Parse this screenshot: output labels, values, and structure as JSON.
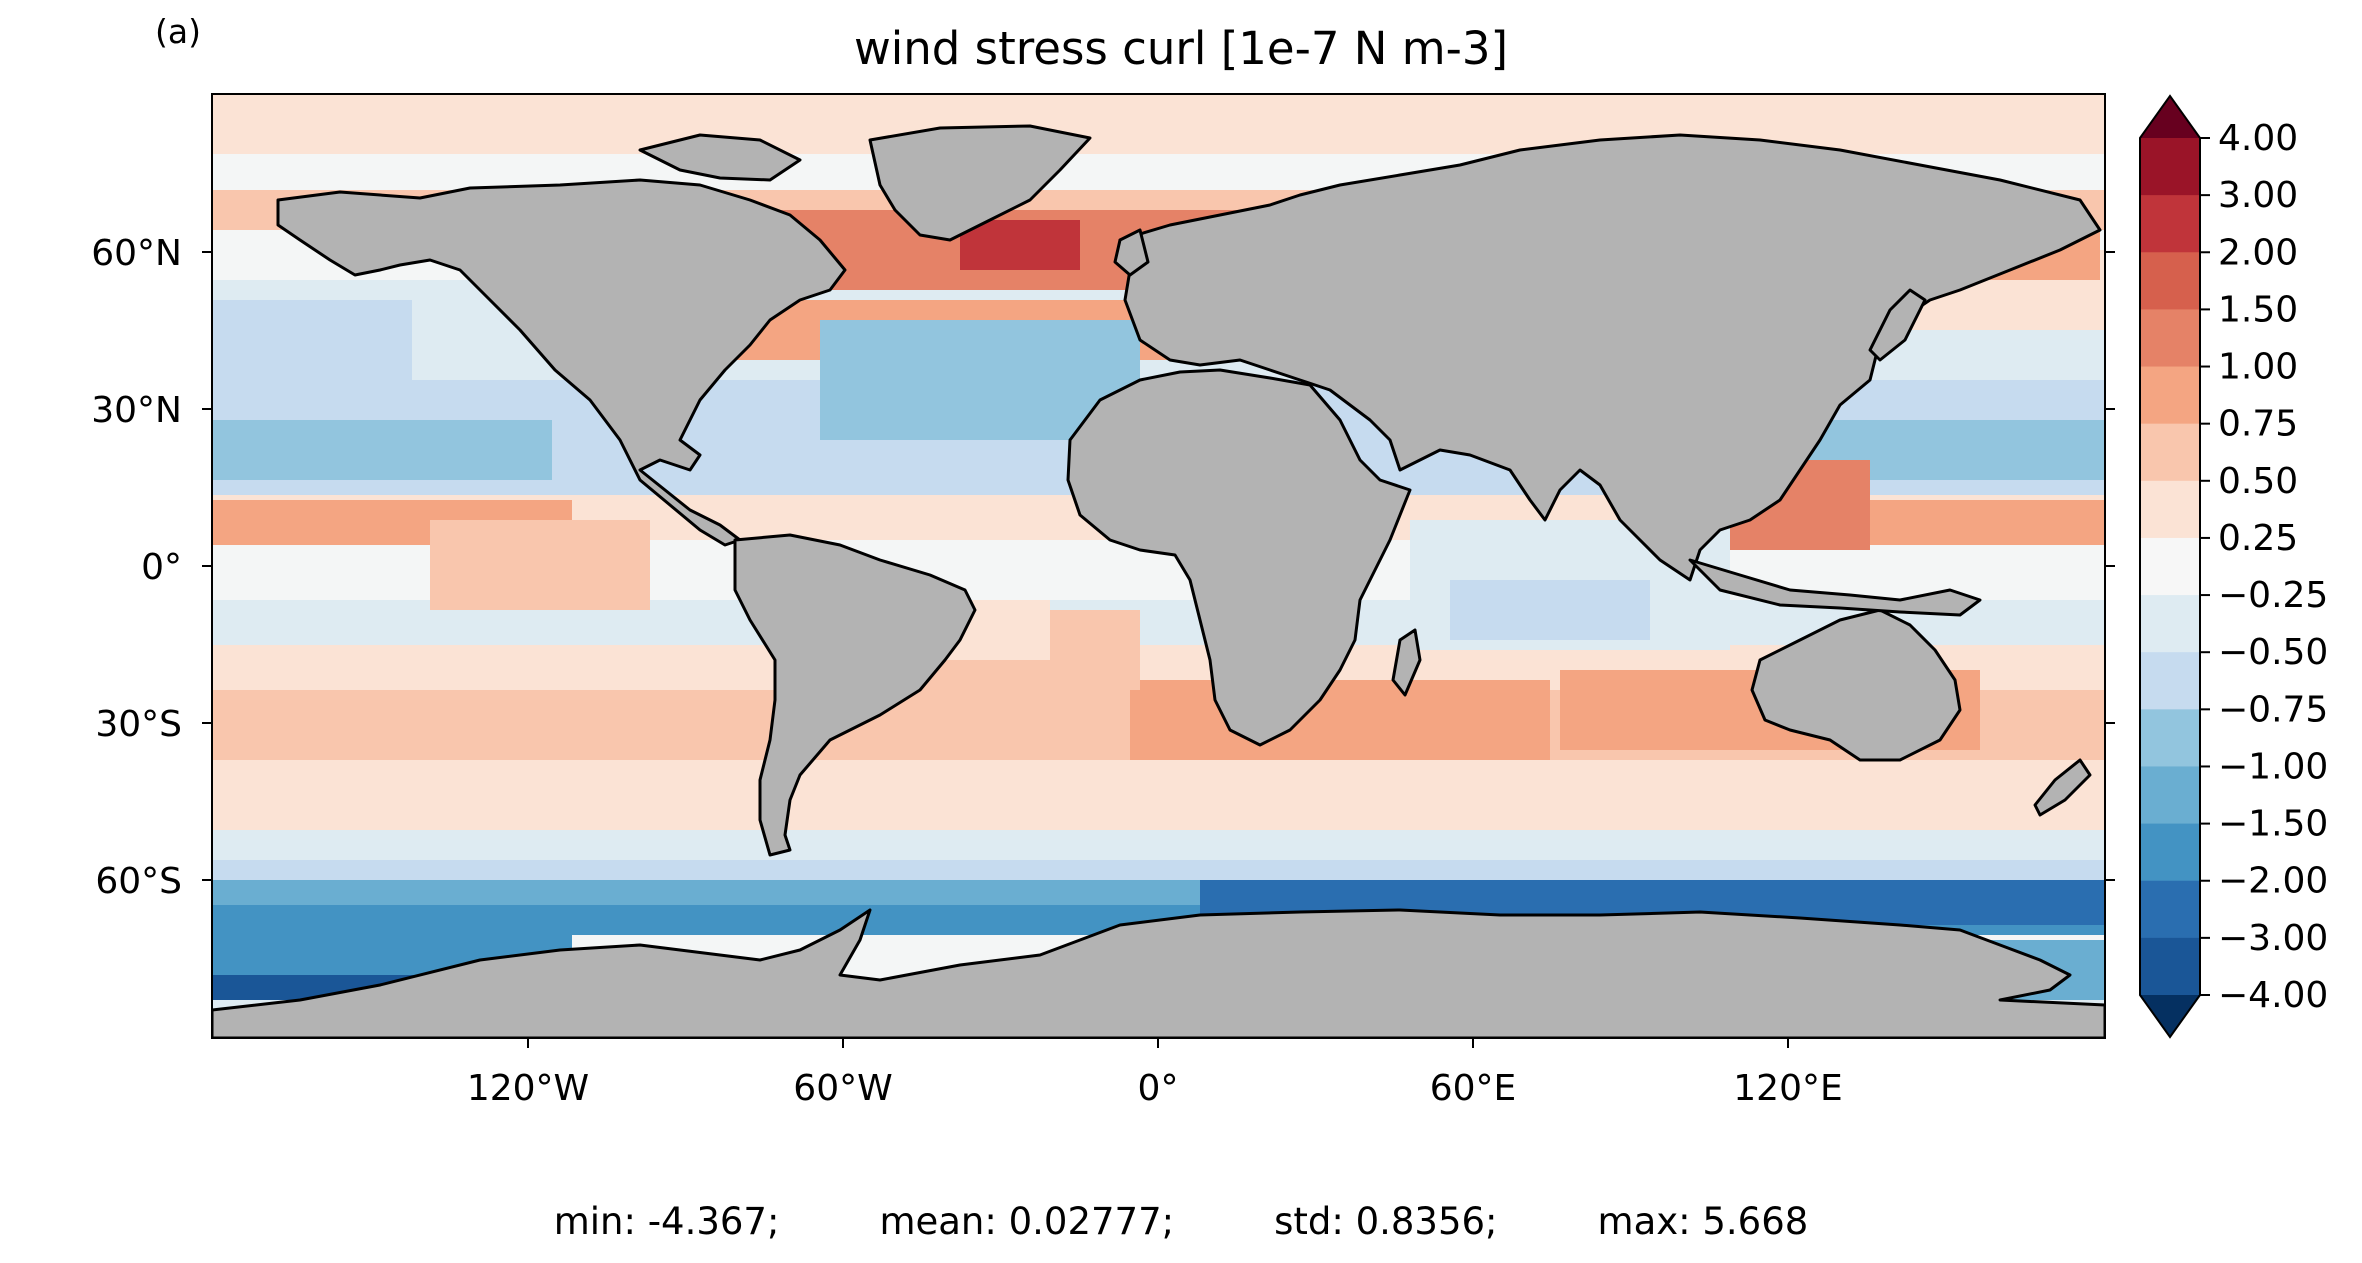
{
  "panel_label": "(a)",
  "title": "wind stress curl [1e-7 N m-3]",
  "lon_ticks": [
    "120°W",
    "60°W",
    "0°",
    "60°E",
    "120°E"
  ],
  "lat_ticks": [
    "60°N",
    "30°N",
    "0°",
    "30°S",
    "60°S"
  ],
  "colorbar": {
    "levels": [
      "4.00",
      "3.00",
      "2.00",
      "1.50",
      "1.00",
      "0.75",
      "0.50",
      "0.25",
      "−0.25",
      "−0.50",
      "−0.75",
      "−1.00",
      "−1.50",
      "−2.00",
      "−3.00",
      "−4.00"
    ],
    "colors": [
      "#67001f",
      "#9a1428",
      "#c0343a",
      "#d6604d",
      "#e58267",
      "#f4a582",
      "#f9c6ad",
      "#fbe3d5",
      "#f7f7f7",
      "#deebf2",
      "#c6dbef",
      "#92c5de",
      "#6aaed1",
      "#4393c3",
      "#2a6eb0",
      "#1a5697",
      "#053061"
    ],
    "extend": "both"
  },
  "colors": {
    "land": "#b3b3b3",
    "ocean_neutral": "#f4f6f6",
    "coast": "#000000"
  },
  "stats": {
    "min": "min: -4.367;",
    "mean": "mean: 0.02777;",
    "std": "std: 0.8356;",
    "max": "max: 5.668"
  }
}
